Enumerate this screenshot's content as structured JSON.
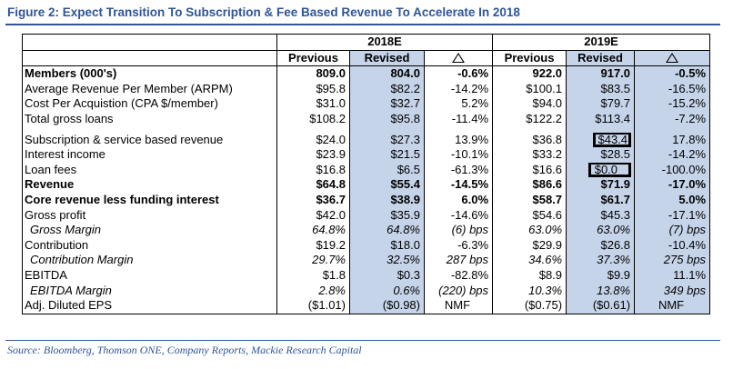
{
  "figure": {
    "title": "Figure 2: Expect Transition To Subscription & Fee Based Revenue To Accelerate In 2018",
    "source": "Source: Bloomberg, Thomson ONE, Company Reports, Mackie Research Capital"
  },
  "header": {
    "year1": "2018E",
    "year2": "2019E",
    "previous": "Previous",
    "revised": "Revised",
    "delta_icon": "delta-triangle-icon"
  },
  "colors": {
    "title": "#2f5597",
    "shade": "#c6d4ea"
  },
  "rows": [
    {
      "label": "Members (000's)",
      "c": [
        "809.0",
        "804.0",
        "-0.6%",
        "922.0",
        "917.0",
        "-0.5%"
      ]
    },
    {
      "label": "Average Revenue Per Member (ARPM)",
      "c": [
        "$95.8",
        "$82.2",
        "-14.2%",
        "$100.1",
        "$83.5",
        "-16.5%"
      ]
    },
    {
      "label": "Cost Per Acquistion (CPA $/member)",
      "c": [
        "$31.0",
        "$32.7",
        "5.2%",
        "$94.0",
        "$79.7",
        "-15.2%"
      ]
    },
    {
      "label": "Total gross loans",
      "c": [
        "$108.2",
        "$95.8",
        "-11.4%",
        "$122.2",
        "$113.4",
        "-7.2%"
      ]
    },
    {
      "label": "Subscription & service based revenue",
      "c": [
        "$24.0",
        "$27.3",
        "13.9%",
        "$36.8",
        "$43.4",
        "17.8%"
      ]
    },
    {
      "label": "Interest income",
      "c": [
        "$23.9",
        "$21.5",
        "-10.1%",
        "$33.2",
        "$28.5",
        "-14.2%"
      ]
    },
    {
      "label": "Loan fees",
      "c": [
        "$16.8",
        "$6.5",
        "-61.3%",
        "$16.6",
        "$0.0",
        "-100.0%"
      ]
    },
    {
      "label": "Revenue",
      "c": [
        "$64.8",
        "$55.4",
        "-14.5%",
        "$86.6",
        "$71.9",
        "-17.0%"
      ]
    },
    {
      "label": "Core revenue less funding interest",
      "c": [
        "$36.7",
        "$38.9",
        "6.0%",
        "$58.7",
        "$61.7",
        "5.0%"
      ]
    },
    {
      "label": "Gross profit",
      "c": [
        "$42.0",
        "$35.9",
        "-14.6%",
        "$54.6",
        "$45.3",
        "-17.1%"
      ]
    },
    {
      "label": "Gross Margin",
      "c": [
        "64.8%",
        "64.8%",
        "(6) bps",
        "63.0%",
        "63.0%",
        "(7) bps"
      ]
    },
    {
      "label": "Contribution",
      "c": [
        "$19.2",
        "$18.0",
        "-6.3%",
        "$29.9",
        "$26.8",
        "-10.4%"
      ]
    },
    {
      "label": "Contribution Margin",
      "c": [
        "29.7%",
        "32.5%",
        "287 bps",
        "34.6%",
        "37.3%",
        "275 bps"
      ]
    },
    {
      "label": "EBITDA",
      "c": [
        "$1.8",
        "$0.3",
        "-82.8%",
        "$8.9",
        "$9.9",
        "11.1%"
      ]
    },
    {
      "label": "EBITDA Margin",
      "c": [
        "2.8%",
        "0.6%",
        "(220) bps",
        "10.3%",
        "13.8%",
        "349 bps"
      ]
    },
    {
      "label": "Adj. Diluted EPS",
      "c": [
        "($1.01)",
        "($0.98)",
        "NMF",
        "($0.75)",
        "($0.61)",
        "NMF"
      ]
    }
  ]
}
